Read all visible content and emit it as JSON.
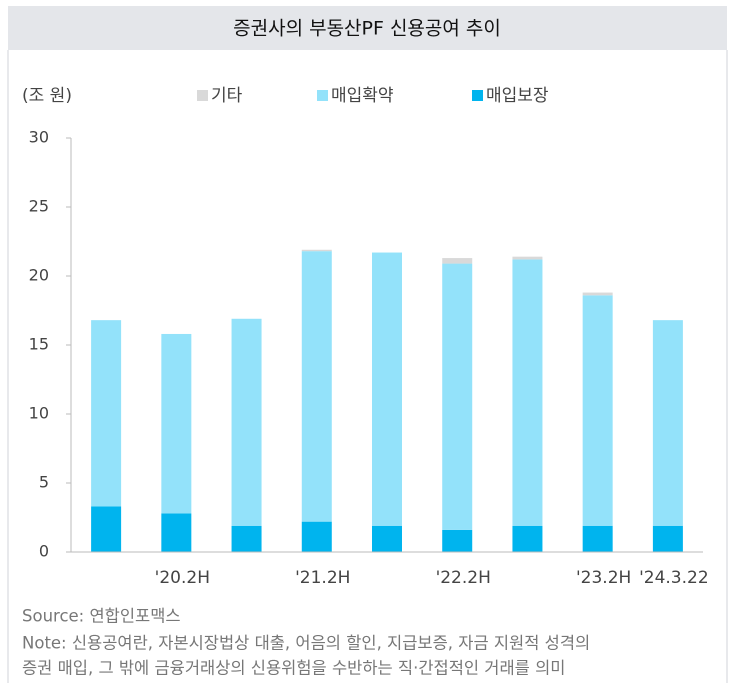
{
  "chart_data": {
    "type": "stacked_bar",
    "title": "증권사의 부동산PF 신용공여 추이",
    "unit_label": "(조 원)",
    "categories": [
      null,
      "'20.2H",
      null,
      "'21.2H",
      null,
      "'22.2H",
      null,
      "'23.2H",
      "'24.3.22"
    ],
    "series": [
      {
        "name": "매입보장",
        "color": "#00b4ee",
        "values": [
          3.3,
          2.8,
          1.9,
          2.2,
          1.9,
          1.6,
          1.9,
          1.9,
          1.9
        ]
      },
      {
        "name": "매입확약",
        "color": "#93e2fa",
        "values": [
          13.5,
          13.0,
          15.0,
          19.6,
          19.8,
          19.3,
          19.3,
          16.7,
          14.9
        ]
      },
      {
        "name": "기타",
        "color": "#d9d9d9",
        "values": [
          0,
          0,
          0,
          0.1,
          0,
          0.4,
          0.2,
          0.2,
          0
        ]
      }
    ],
    "ylim": [
      0,
      30
    ],
    "yticks": [
      0,
      5,
      10,
      15,
      20,
      25,
      30
    ],
    "source": "Source: 연합인포맥스",
    "note": [
      "Note: 신용공여란, 자본시장법상 대출, 어음의 할인, 지급보증, 자금 지원적 성격의",
      "증권 매입, 그 밖에 금융거래상의 신용위험을 수반하는 직·간접적인 거래를 의미"
    ]
  }
}
